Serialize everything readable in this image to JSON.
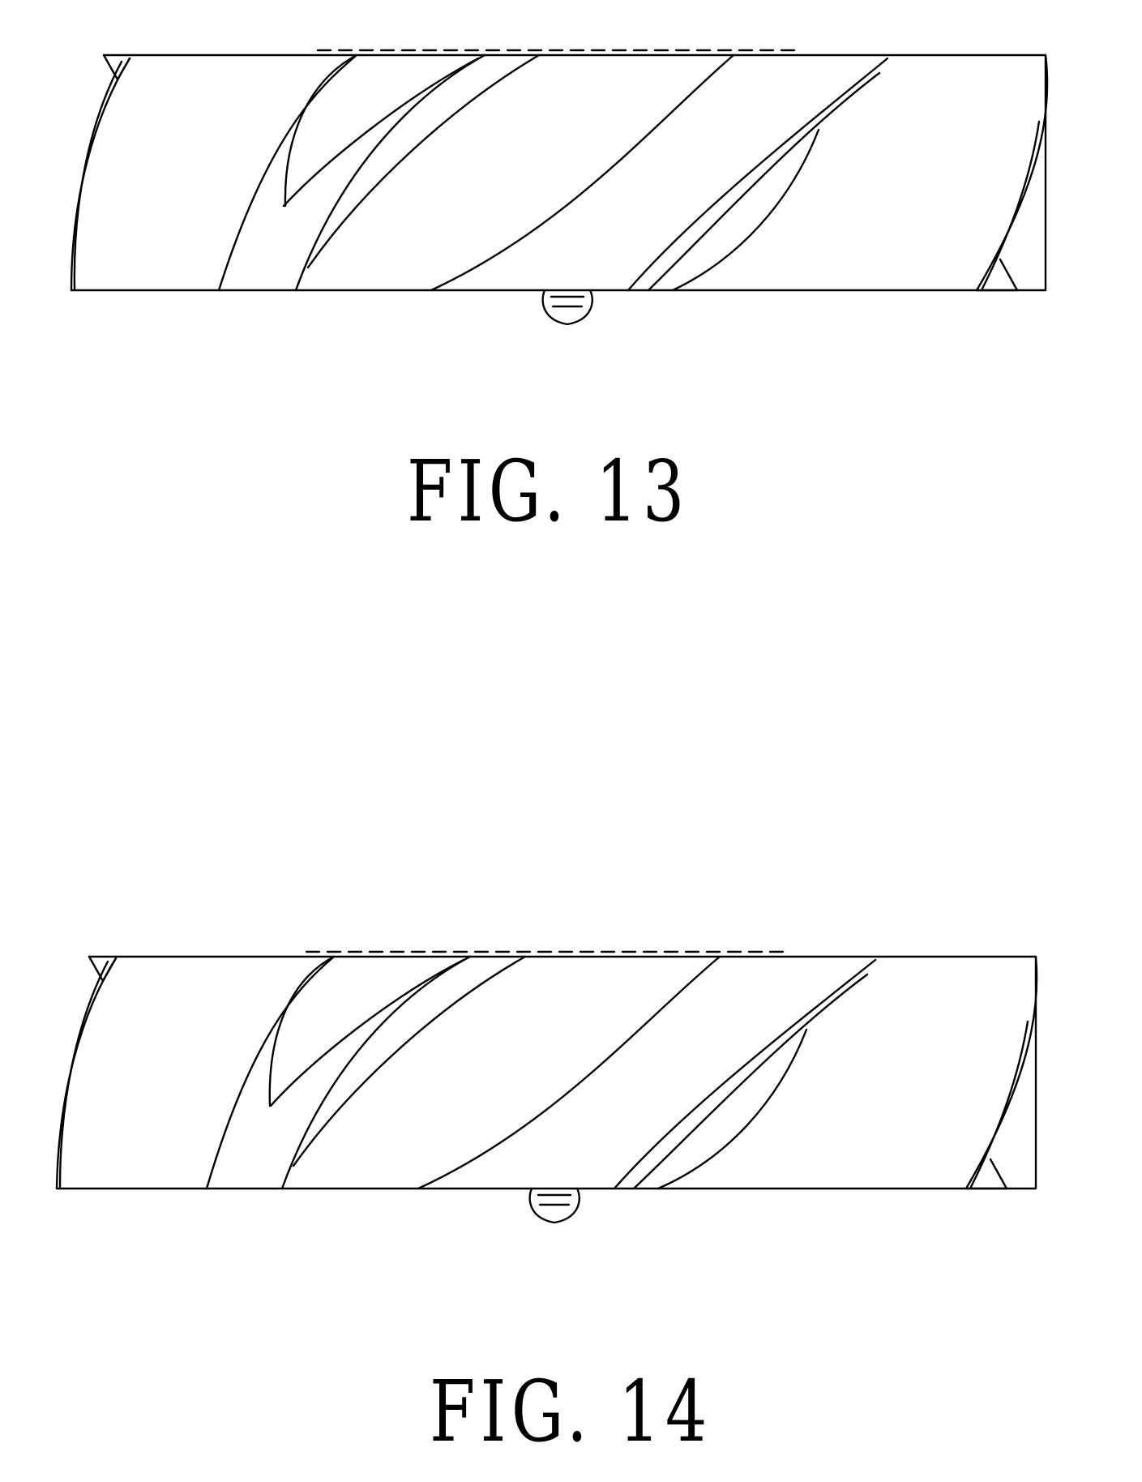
{
  "figures": [
    {
      "label": "FIG. 13"
    },
    {
      "label": "FIG. 14"
    }
  ]
}
